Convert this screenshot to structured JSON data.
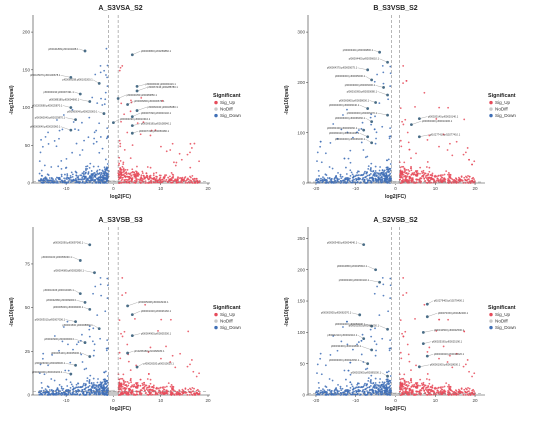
{
  "legend": {
    "title": "Significant",
    "items": [
      {
        "label": "Sig_Up",
        "color": "#E64B5B"
      },
      {
        "label": "NoDiff",
        "color": "#C8C8C8"
      },
      {
        "label": "Sig_Down",
        "color": "#3F6FB6"
      }
    ]
  },
  "chart_data": [
    {
      "type": "scatter",
      "title": "A_S3VSA_S2",
      "xlabel": "log2(FC)",
      "ylabel": "-log10(qval)",
      "xlim": [
        -17,
        20
      ],
      "ylim": [
        0,
        220
      ],
      "xticks": [
        -10,
        0,
        10,
        20
      ],
      "yticks": [
        0,
        50,
        100,
        150,
        200
      ],
      "vlines": [
        -1,
        1
      ],
      "hline": 2,
      "labels": [
        {
          "text": "pf00101899;pf00102468.1",
          "x": -6,
          "y": 175
        },
        {
          "text": "pf00006800;pf00259860.1",
          "x": 4,
          "y": 170
        },
        {
          "text": "pf00105679;pf00100678.1",
          "x": -9,
          "y": 140
        },
        {
          "text": "pf00060058;pf00100200.1",
          "x": -3,
          "y": 132
        },
        {
          "text": "pf00006040;pf00060416.1",
          "x": 5,
          "y": 128
        },
        {
          "text": "pf00067436;pf00288780.1",
          "x": 5,
          "y": 122
        },
        {
          "text": "pf00000190;pf00007491.1",
          "x": -7,
          "y": 118
        },
        {
          "text": "pf00000350;pf00080850.1",
          "x": 1,
          "y": 112
        },
        {
          "text": "pf00088189;pf00004660.1",
          "x": -5,
          "y": 108
        },
        {
          "text": "pf00006800;pf00000670.1",
          "x": 3,
          "y": 104
        },
        {
          "text": "pf10200580;pf00025870.1",
          "x": -9,
          "y": 100
        },
        {
          "text": "pf00060040;pf00025080.1",
          "x": 5,
          "y": 96
        },
        {
          "text": "pf00060040;pf00025000.1",
          "x": -2,
          "y": 92
        },
        {
          "text": "pf00007090;pf00003140.1",
          "x": 4,
          "y": 88
        },
        {
          "text": "pf00060040;pf00025870.1",
          "x": -8,
          "y": 84
        },
        {
          "text": "pf00004090;pf00010310.1",
          "x": 0,
          "y": 80
        },
        {
          "text": "pf00006180;pf00108540.1",
          "x": 4,
          "y": 76
        },
        {
          "text": "pf00060040;pf00020060.1",
          "x": -9,
          "y": 70
        },
        {
          "text": "pf00007190;pf00050280.1",
          "x": 4,
          "y": 66
        }
      ]
    },
    {
      "type": "scatter",
      "title": "B_S3VSB_S2",
      "xlabel": "log2(FC)",
      "ylabel": "-log10(qval)",
      "xlim": [
        -22,
        22
      ],
      "ylim": [
        0,
        330
      ],
      "xticks": [
        -20,
        -10,
        0,
        10,
        20
      ],
      "yticks": [
        0,
        100,
        200,
        300
      ],
      "vlines": [
        -1,
        1
      ],
      "hline": 2,
      "labels": [
        {
          "text": "pf00003404;pf00009800.1",
          "x": -4,
          "y": 260
        },
        {
          "text": "pf00004400;pf00036610.1",
          "x": -2,
          "y": 240
        },
        {
          "text": "pf00004370;pf00005075.1",
          "x": -7,
          "y": 225
        },
        {
          "text": "pf00003000;pf00005000.1",
          "x": -6,
          "y": 205
        },
        {
          "text": "pf00003000;pf00006000.1",
          "x": -3,
          "y": 190
        },
        {
          "text": "pf00010090;pf00050080.1",
          "x": -2,
          "y": 175
        },
        {
          "text": "pf00000800;pf00058000.1",
          "x": -5,
          "y": 160
        },
        {
          "text": "pf00004060;pf00006040.1",
          "x": -7,
          "y": 148
        },
        {
          "text": "pf00006000;pf00006270.1",
          "x": -2,
          "y": 135
        },
        {
          "text": "pf00006000;pf00066660.1",
          "x": -6,
          "y": 122
        },
        {
          "text": "pf00020140;pf00020140.1",
          "x": 6,
          "y": 128
        },
        {
          "text": "pf00060400;pf00010200.1",
          "x": 4,
          "y": 116
        },
        {
          "text": "pf00060400;pf00006060.1",
          "x": -8,
          "y": 105
        },
        {
          "text": "pf00060040;pf00060406.1",
          "x": -7,
          "y": 92
        },
        {
          "text": "pf10277410;pf10277410.1",
          "x": 6,
          "y": 92
        },
        {
          "text": "pf00004000;pf00066000.1",
          "x": -6,
          "y": 80
        }
      ]
    },
    {
      "type": "scatter",
      "title": "A_S3VSB_S3",
      "xlabel": "log2(FC)",
      "ylabel": "-log10(qval)",
      "xlim": [
        -17,
        20
      ],
      "ylim": [
        0,
        95
      ],
      "xticks": [
        -10,
        0,
        10,
        20
      ],
      "yticks": [
        0,
        25,
        50,
        75
      ],
      "vlines": [
        -1,
        1
      ],
      "hline": 2,
      "labels": [
        {
          "text": "pf00002090;pf00097060.1",
          "x": -5,
          "y": 86
        },
        {
          "text": "pf00003100;pf00056030.1",
          "x": -7,
          "y": 77
        },
        {
          "text": "pf00004080;pf00052850.1",
          "x": -4,
          "y": 70
        },
        {
          "text": "pf00010406;pf00010406.1",
          "x": -7,
          "y": 58
        },
        {
          "text": "pf00032680;pf00099000.1",
          "x": -6,
          "y": 53
        },
        {
          "text": "pf00005008;pf00018240.1",
          "x": 3,
          "y": 51
        },
        {
          "text": "pf00005009;pf00009000.1",
          "x": -5,
          "y": 49
        },
        {
          "text": "pf00001020;pf00026160.1",
          "x": 4,
          "y": 46
        },
        {
          "text": "pf00003010;pf00007006.1",
          "x": -8,
          "y": 42
        },
        {
          "text": "pf00001500;pf00008800.1",
          "x": -3,
          "y": 38
        },
        {
          "text": "pf00004900;pf00005300.1",
          "x": 4,
          "y": 34
        },
        {
          "text": "pf00020900;pf00006000.1",
          "x": -6,
          "y": 30
        },
        {
          "text": "pf10268180;pf10268180.1",
          "x": 3,
          "y": 24
        },
        {
          "text": "pf00005100;pf00005000.1",
          "x": -5,
          "y": 22
        },
        {
          "text": "pf00026030;pf00028030.1",
          "x": -8,
          "y": 17
        },
        {
          "text": "pf00026020;pf00010020.1",
          "x": 5,
          "y": 16
        },
        {
          "text": "pf00000400;pf00030200.1",
          "x": -9,
          "y": 12
        }
      ]
    },
    {
      "type": "scatter",
      "title": "A_S2VSB_S2",
      "xlabel": "log2(FC)",
      "ylabel": "-log10(qval)",
      "xlim": [
        -22,
        22
      ],
      "ylim": [
        0,
        265
      ],
      "xticks": [
        -20,
        -10,
        0,
        10,
        20
      ],
      "yticks": [
        0,
        50,
        100,
        150,
        200,
        250
      ],
      "vlines": [
        -1,
        1
      ],
      "hline": 2,
      "labels": [
        {
          "text": "pf00003460;pf00004640.1",
          "x": -8,
          "y": 240
        },
        {
          "text": "pf00010860;pf00025510.1",
          "x": -5,
          "y": 200
        },
        {
          "text": "pf00000460;pf00000140.1",
          "x": -4,
          "y": 180
        },
        {
          "text": "pf10279400;pf10279400.1",
          "x": 8,
          "y": 145
        },
        {
          "text": "pf00000300;pf00062070.1",
          "x": -9,
          "y": 128
        },
        {
          "text": "pf00070150;pf00182400.1",
          "x": 8,
          "y": 125
        },
        {
          "text": "pf00002000;pf00050000.1",
          "x": -6,
          "y": 110
        },
        {
          "text": "pf00002050;pf00051050.1",
          "x": -2,
          "y": 105
        },
        {
          "text": "pf00010500;pf00002500.1",
          "x": 7,
          "y": 100
        },
        {
          "text": "pf00002110;pf00002110.1",
          "x": -8,
          "y": 90
        },
        {
          "text": "pf00025190;pf00025190.1",
          "x": 7,
          "y": 82
        },
        {
          "text": "pf00030400;pf00010800.1",
          "x": -6,
          "y": 72
        },
        {
          "text": "pf00040020;pf00010020.1",
          "x": 8,
          "y": 62
        },
        {
          "text": "pf00003060;pf00022060.1",
          "x": -7,
          "y": 50
        },
        {
          "text": "pf00001000;pf00018000.1",
          "x": 6,
          "y": 45
        },
        {
          "text": "pf00002900;pf00089200.1",
          "x": -2,
          "y": 30
        }
      ]
    }
  ]
}
